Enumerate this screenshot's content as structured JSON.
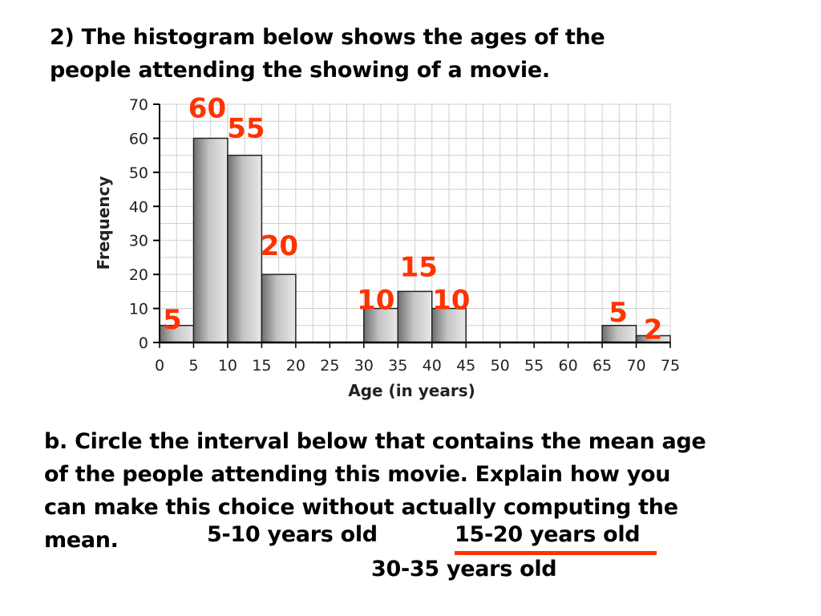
{
  "question": {
    "line1": "2)  The histogram below shows the ages of the",
    "line2": "people attending the showing of a movie."
  },
  "part_b": {
    "line1": "b. Circle the interval below that contains the mean age",
    "line2": "of the people attending this movie.  Explain how you",
    "line3": "can make this choice without actually computing the",
    "line4_start": "mean.",
    "options": [
      "5-10 years old",
      "15-20 years old",
      "30-35 years old"
    ],
    "selected_option": "15-20 years old"
  },
  "colors": {
    "annotation": "#ff3300",
    "bar_dark": "#6e6e6e",
    "bar_light": "#e4e4e4",
    "grid": "#cfcfcf"
  },
  "chart_data": {
    "type": "bar",
    "xlabel": "Age (in years)",
    "ylabel": "Frequency",
    "xlim": [
      0,
      75
    ],
    "ylim": [
      0,
      70
    ],
    "x_ticks": [
      0,
      5,
      10,
      15,
      20,
      25,
      30,
      35,
      40,
      45,
      50,
      55,
      60,
      65,
      70,
      75
    ],
    "y_ticks": [
      0,
      10,
      20,
      30,
      40,
      50,
      60,
      70
    ],
    "bin_width": 5,
    "bins": [
      {
        "start": 0,
        "end": 5,
        "value": 5
      },
      {
        "start": 5,
        "end": 10,
        "value": 60
      },
      {
        "start": 10,
        "end": 15,
        "value": 55
      },
      {
        "start": 15,
        "end": 20,
        "value": 20
      },
      {
        "start": 20,
        "end": 25,
        "value": 0
      },
      {
        "start": 25,
        "end": 30,
        "value": 0
      },
      {
        "start": 30,
        "end": 35,
        "value": 10
      },
      {
        "start": 35,
        "end": 40,
        "value": 15
      },
      {
        "start": 40,
        "end": 45,
        "value": 10
      },
      {
        "start": 45,
        "end": 50,
        "value": 0
      },
      {
        "start": 50,
        "end": 55,
        "value": 0
      },
      {
        "start": 55,
        "end": 60,
        "value": 0
      },
      {
        "start": 60,
        "end": 65,
        "value": 0
      },
      {
        "start": 65,
        "end": 70,
        "value": 5
      },
      {
        "start": 70,
        "end": 75,
        "value": 2
      }
    ],
    "grid": true,
    "annotations": [
      {
        "text": "5",
        "bin_start": 0
      },
      {
        "text": "60",
        "bin_start": 5
      },
      {
        "text": "55",
        "bin_start": 10
      },
      {
        "text": "20",
        "bin_start": 15
      },
      {
        "text": "10",
        "bin_start": 30
      },
      {
        "text": "15",
        "bin_start": 35
      },
      {
        "text": "10",
        "bin_start": 40
      },
      {
        "text": "5",
        "bin_start": 65
      },
      {
        "text": "2",
        "bin_start": 70
      }
    ]
  }
}
